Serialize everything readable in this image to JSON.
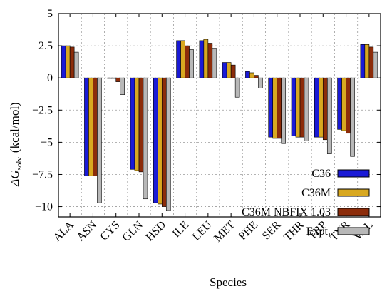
{
  "chart_data": {
    "type": "bar",
    "categories": [
      "ALA",
      "ASN",
      "CYS",
      "GLN",
      "HSD",
      "ILE",
      "LEU",
      "MET",
      "PHE",
      "SER",
      "THR",
      "TRP",
      "TYR",
      "VAL"
    ],
    "series": [
      {
        "name": "C36",
        "color": "#1a1ad6",
        "values": [
          2.5,
          -7.6,
          0.0,
          -7.1,
          -9.7,
          2.9,
          2.9,
          1.2,
          0.5,
          -4.6,
          -4.5,
          -4.6,
          -4.0,
          2.6
        ]
      },
      {
        "name": "C36M",
        "color": "#d8a820",
        "values": [
          2.5,
          -7.6,
          0.0,
          -7.2,
          -9.8,
          2.9,
          3.0,
          1.2,
          0.4,
          -4.7,
          -4.6,
          -4.6,
          -4.1,
          2.6
        ]
      },
      {
        "name": "C36M NBFIX 1.03",
        "color": "#8c2c0a",
        "values": [
          2.4,
          -7.6,
          -0.3,
          -7.3,
          -10.0,
          2.5,
          2.7,
          1.0,
          0.2,
          -4.7,
          -4.6,
          -4.8,
          -4.3,
          2.4
        ]
      },
      {
        "name": "Expt.",
        "color": "#b8b8b8",
        "values": [
          2.0,
          -9.7,
          -1.3,
          -9.4,
          -10.3,
          2.2,
          2.3,
          -1.5,
          -0.8,
          -5.1,
          -4.9,
          -5.9,
          -6.1,
          2.0
        ]
      }
    ],
    "ylabel_main": "ΔG",
    "ylabel_sub": "solv",
    "ylabel_unit": "(kcal/mol)",
    "xlabel": "Species",
    "ylim": [
      -10.8,
      5
    ],
    "yticks": [
      5,
      2.5,
      0,
      -2.5,
      -5,
      -7.5,
      -10
    ],
    "ytick_labels": [
      "5",
      "2.5",
      "0",
      "−2.5",
      "−5",
      "−7.5",
      "−10"
    ],
    "grid": true,
    "legend_position": "lower-right"
  }
}
